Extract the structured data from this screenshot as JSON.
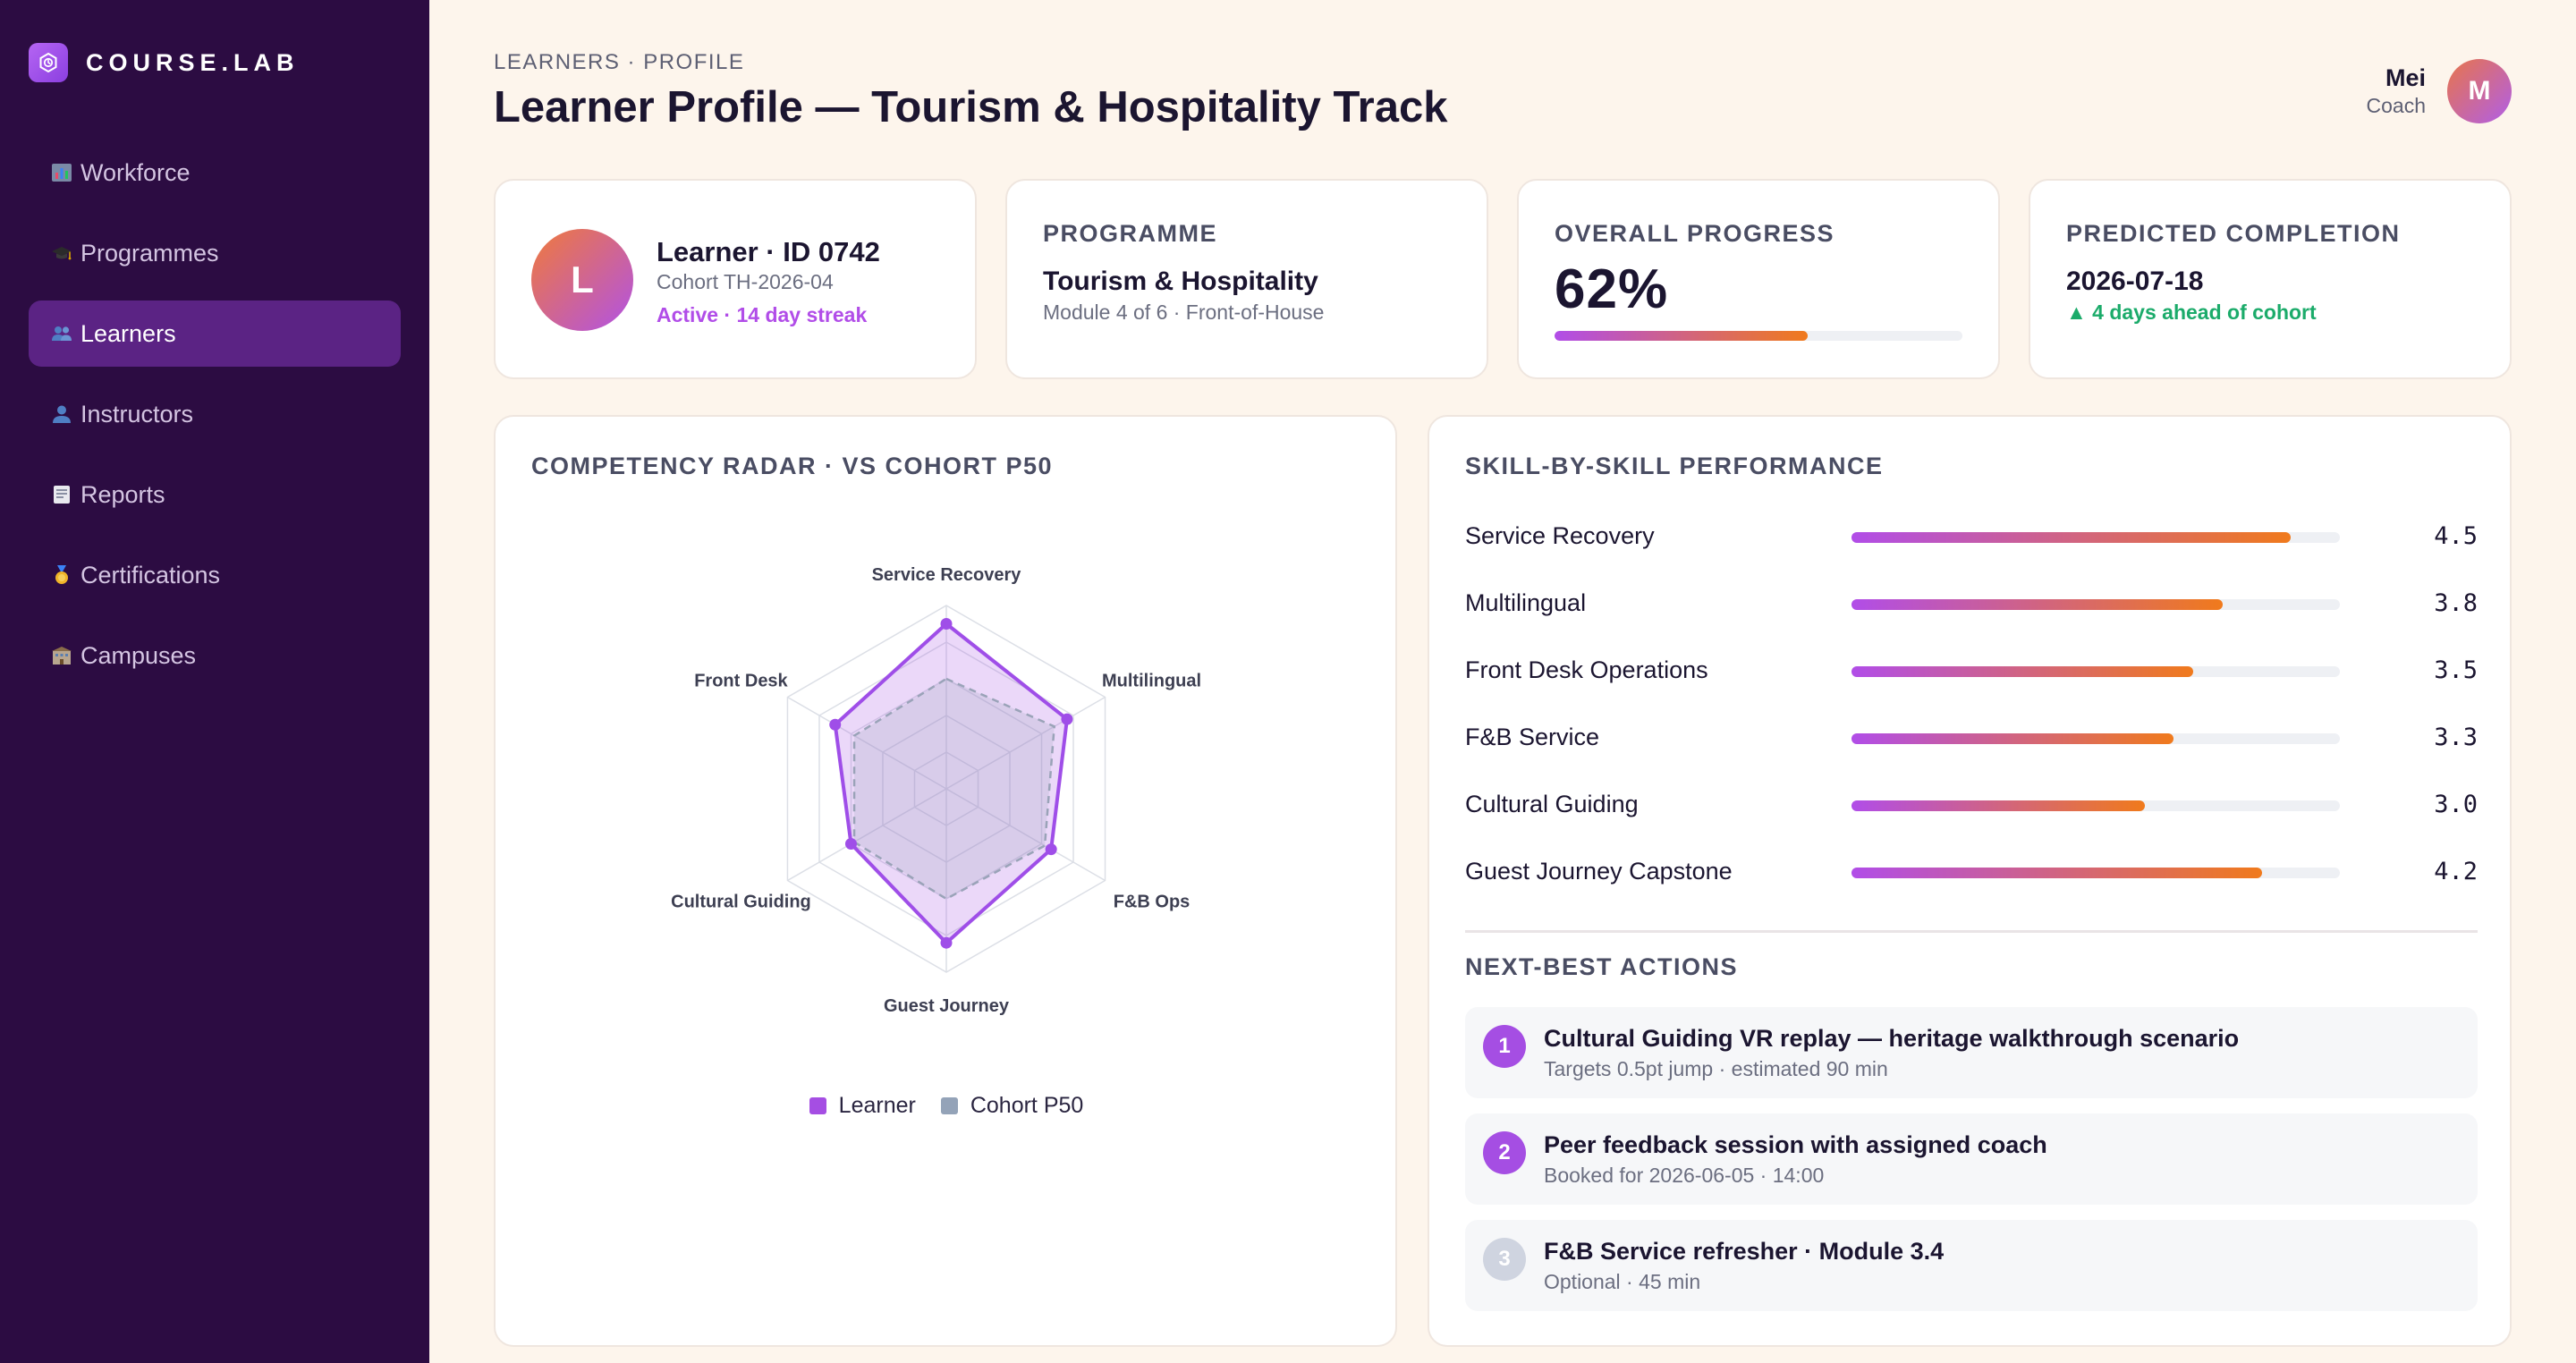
{
  "brand": {
    "name": "COURSE.LAB"
  },
  "sidebar": {
    "items": [
      {
        "label": "Workforce",
        "icon": "bar-chart-icon",
        "active": false
      },
      {
        "label": "Programmes",
        "icon": "graduation-cap-icon",
        "active": false
      },
      {
        "label": "Learners",
        "icon": "people-icon",
        "active": true
      },
      {
        "label": "Instructors",
        "icon": "person-icon",
        "active": false
      },
      {
        "label": "Reports",
        "icon": "document-icon",
        "active": false
      },
      {
        "label": "Certifications",
        "icon": "medal-icon",
        "active": false
      },
      {
        "label": "Campuses",
        "icon": "building-icon",
        "active": false
      }
    ]
  },
  "header": {
    "breadcrumb": "LEARNERS · PROFILE",
    "title": "Learner Profile — Tourism & Hospitality Track",
    "user": {
      "name": "Mei",
      "role": "Coach",
      "initial": "M"
    }
  },
  "learner_card": {
    "initial": "L",
    "name": "Learner · ID 0742",
    "cohort": "Cohort TH-2026-04",
    "status": "Active · 14 day streak"
  },
  "programme_card": {
    "label": "PROGRAMME",
    "name": "Tourism & Hospitality",
    "detail": "Module 4 of 6 · Front-of-House"
  },
  "progress_card": {
    "label": "OVERALL PROGRESS",
    "value": "62%",
    "fraction": 0.62
  },
  "completion_card": {
    "label": "PREDICTED COMPLETION",
    "date": "2026-07-18",
    "delta": "▲ 4 days ahead of cohort"
  },
  "radar": {
    "title": "COMPETENCY RADAR · VS COHORT P50",
    "legend": [
      "Learner",
      "Cohort P50"
    ]
  },
  "chart_data": {
    "type": "radar",
    "title": "COMPETENCY RADAR · VS COHORT P50",
    "axes": [
      "Service Recovery",
      "Multilingual",
      "F&B Ops",
      "Guest Journey",
      "Cultural Guiding",
      "Front Desk"
    ],
    "max": 5,
    "series": [
      {
        "name": "Learner",
        "values": [
          4.5,
          3.8,
          3.3,
          4.2,
          3.0,
          3.5
        ],
        "color": "#9f4ee8"
      },
      {
        "name": "Cohort P50",
        "values": [
          3.0,
          3.4,
          3.1,
          3.0,
          2.9,
          2.9
        ],
        "color": "#94a3b8"
      }
    ]
  },
  "skills": {
    "title": "SKILL-BY-SKILL PERFORMANCE",
    "max": 5,
    "rows": [
      {
        "name": "Service Recovery",
        "score": "4.5",
        "value": 4.5
      },
      {
        "name": "Multilingual",
        "score": "3.8",
        "value": 3.8
      },
      {
        "name": "Front Desk Operations",
        "score": "3.5",
        "value": 3.5
      },
      {
        "name": "F&B Service",
        "score": "3.3",
        "value": 3.3
      },
      {
        "name": "Cultural Guiding",
        "score": "3.0",
        "value": 3.0
      },
      {
        "name": "Guest Journey Capstone",
        "score": "4.2",
        "value": 4.2
      }
    ]
  },
  "actions": {
    "title": "NEXT-BEST ACTIONS",
    "items": [
      {
        "num": "1",
        "title": "Cultural Guiding VR replay — heritage walkthrough scenario",
        "sub": "Targets 0.5pt jump · estimated 90 min"
      },
      {
        "num": "2",
        "title": "Peer feedback session with assigned coach",
        "sub": "Booked for 2026-06-05 · 14:00"
      },
      {
        "num": "3",
        "title": "F&B Service refresher · Module 3.4",
        "sub": "Optional · 45 min"
      }
    ]
  },
  "colors": {
    "sidebar_bg": "#2c0c42",
    "sidebar_active": "#5b2384",
    "accent_purple": "#a54ee3",
    "accent_orange": "#f07a1c",
    "success_green": "#1bab6a",
    "page_bg": "#fdf5ec"
  }
}
